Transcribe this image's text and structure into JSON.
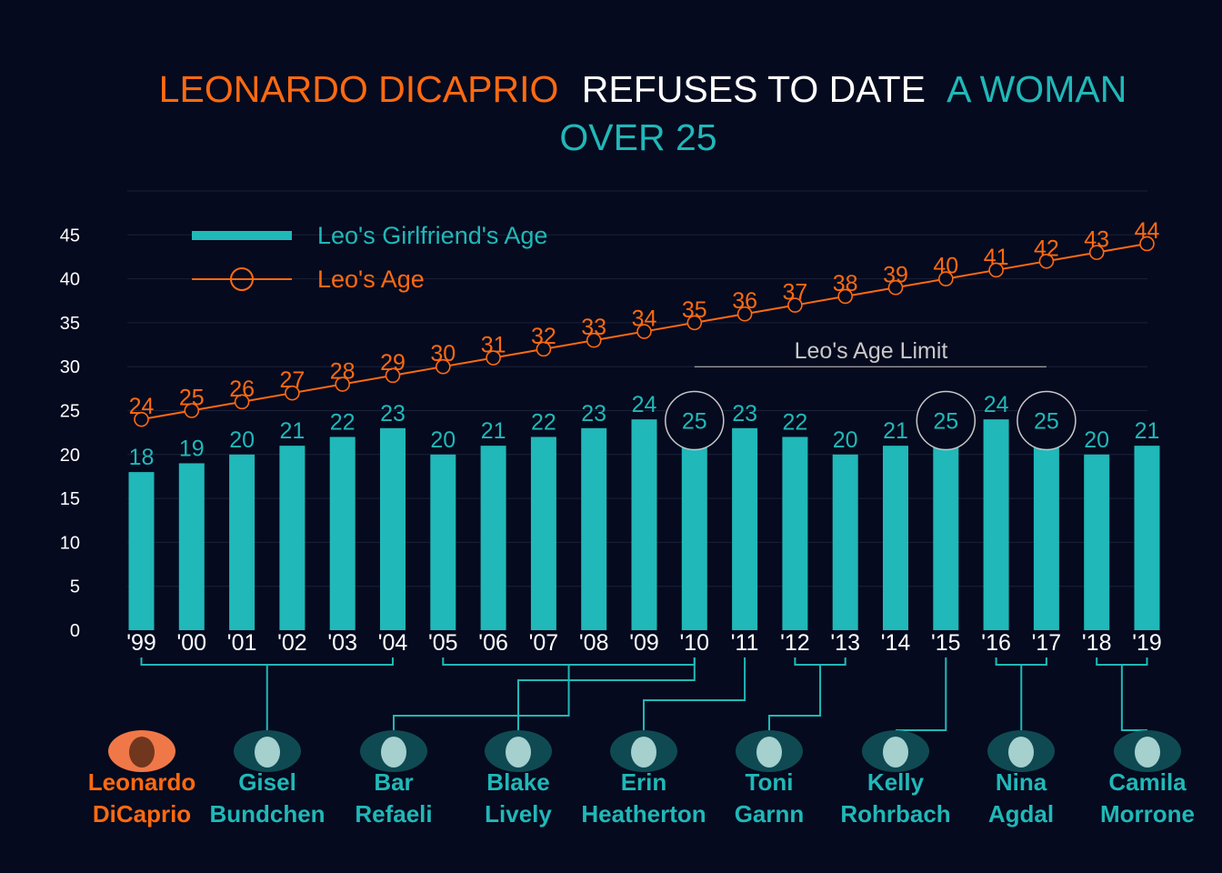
{
  "title": {
    "part1": "LEONARDO DICAPRIO",
    "part2": "REFUSES TO DATE",
    "part3": "A WOMAN",
    "line2": "OVER 25"
  },
  "colors": {
    "background": "#050a1e",
    "teal": "#20b8b8",
    "orange": "#ff6a10",
    "white": "#ffffff",
    "gray": "#c8c8c8"
  },
  "legend": {
    "girlfriend": "Leo's Girlfriend's Age",
    "leo": "Leo's Age"
  },
  "annotation": "Leo's Age Limit",
  "chart_data": {
    "type": "bar",
    "categories": [
      "'99",
      "'00",
      "'01",
      "'02",
      "'03",
      "'04",
      "'05",
      "'06",
      "'07",
      "'08",
      "'09",
      "'10",
      "'11",
      "'12",
      "'13",
      "'14",
      "'15",
      "'16",
      "'17",
      "'18",
      "'19"
    ],
    "series": [
      {
        "name": "Leo's Girlfriend's Age",
        "type": "bar",
        "values": [
          18,
          19,
          20,
          21,
          22,
          23,
          20,
          21,
          22,
          23,
          24,
          25,
          23,
          22,
          20,
          21,
          25,
          24,
          25,
          20,
          21
        ]
      },
      {
        "name": "Leo's Age",
        "type": "line",
        "values": [
          24,
          25,
          26,
          27,
          28,
          29,
          30,
          31,
          32,
          33,
          34,
          35,
          36,
          37,
          38,
          39,
          40,
          41,
          42,
          43,
          44
        ]
      }
    ],
    "ylim": [
      0,
      50
    ],
    "yticks": [
      0,
      5,
      10,
      15,
      20,
      25,
      30,
      35,
      40,
      45
    ],
    "highlighted_values": [
      11,
      16,
      18
    ],
    "grid": true,
    "legend_position": "top-left"
  },
  "people": [
    {
      "first": "Leonardo",
      "last": "DiCaprio",
      "leo": true
    },
    {
      "first": "Gisel",
      "last": "Bundchen",
      "range": [
        0,
        5
      ]
    },
    {
      "first": "Bar",
      "last": "Refaeli",
      "range": [
        6,
        11
      ]
    },
    {
      "first": "Blake",
      "last": "Lively",
      "range": [
        11,
        11
      ]
    },
    {
      "first": "Erin",
      "last": "Heatherton",
      "range": [
        12,
        12
      ]
    },
    {
      "first": "Toni",
      "last": "Garnn",
      "range": [
        13,
        14
      ]
    },
    {
      "first": "Kelly",
      "last": "Rohrbach",
      "range": [
        16,
        16
      ]
    },
    {
      "first": "Nina",
      "last": "Agdal",
      "range": [
        17,
        18
      ]
    },
    {
      "first": "Camila",
      "last": "Morrone",
      "range": [
        19,
        20
      ]
    }
  ]
}
